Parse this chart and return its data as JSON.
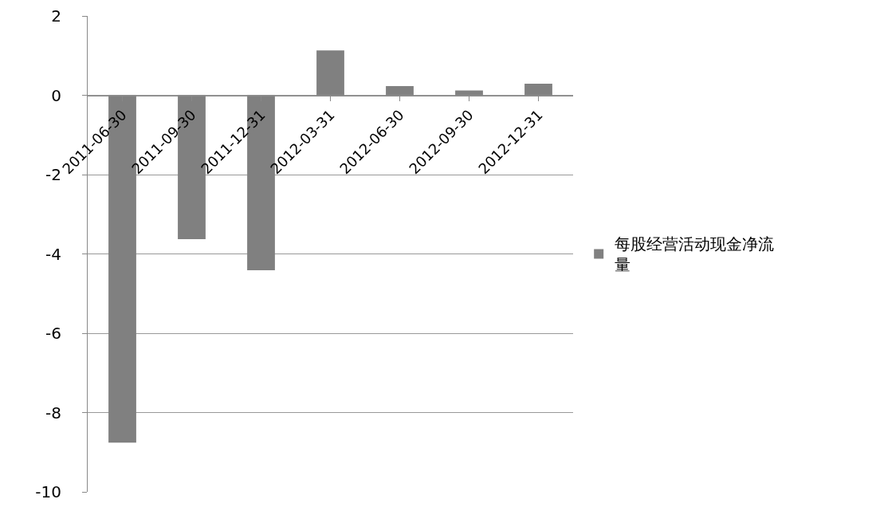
{
  "chart_data": {
    "type": "bar",
    "categories": [
      "2011-06-30",
      "2011-09-30",
      "2011-12-31",
      "2012-03-31",
      "2012-06-30",
      "2012-09-30",
      "2012-12-31"
    ],
    "series": [
      {
        "name": "每股经营活动现金净流量",
        "color": "#808080",
        "values": [
          -8.76,
          -3.63,
          -4.41,
          1.13,
          0.23,
          0.12,
          0.29
        ]
      }
    ],
    "ylim": [
      -10,
      2
    ],
    "yticks": [
      -10,
      -8,
      -6,
      -4,
      -2,
      0,
      2
    ],
    "grid": "y",
    "legend": "right"
  }
}
